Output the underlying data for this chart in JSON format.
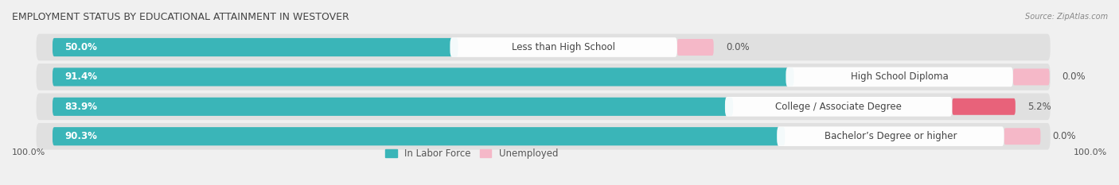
{
  "title": "EMPLOYMENT STATUS BY EDUCATIONAL ATTAINMENT IN WESTOVER",
  "source": "Source: ZipAtlas.com",
  "categories": [
    "Less than High School",
    "High School Diploma",
    "College / Associate Degree",
    "Bachelor’s Degree or higher"
  ],
  "in_labor_force": [
    50.0,
    91.4,
    83.9,
    90.3
  ],
  "unemployed": [
    0.0,
    0.0,
    5.2,
    0.0
  ],
  "labor_force_color": "#3ab5b8",
  "unemployed_color_strong": "#e8627a",
  "unemployed_color_light": "#f5b8c8",
  "bg_color": "#f0f0f0",
  "row_bg_color": "#e8e8e8",
  "row_bg_dark": "#d8d8d8",
  "title_fontsize": 9,
  "label_fontsize": 8.5,
  "value_fontsize": 8.5,
  "tick_fontsize": 8,
  "legend_fontsize": 8.5,
  "bar_height": 0.62,
  "total_width": 100.0,
  "left_axis_label": "100.0%",
  "right_axis_label": "100.0%",
  "xlim_left": -5,
  "xlim_right": 130
}
